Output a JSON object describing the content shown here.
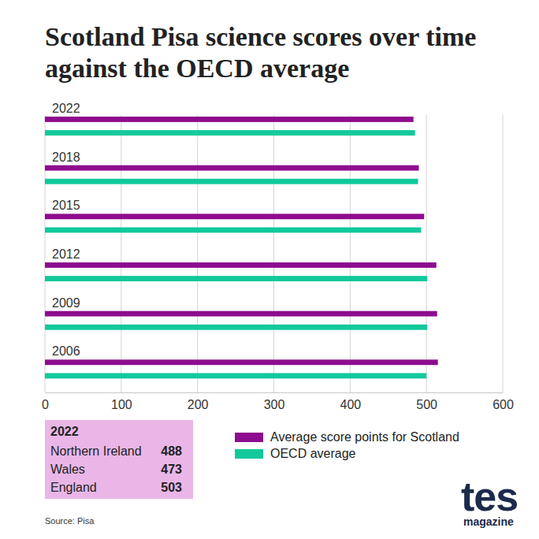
{
  "chart_data": {
    "type": "bar",
    "orientation": "horizontal",
    "title": "Scotland Pisa science scores over time against the OECD average",
    "categories": [
      "2022",
      "2018",
      "2015",
      "2012",
      "2009",
      "2006"
    ],
    "series": [
      {
        "name": "Average score points for Scotland",
        "color": "#8e0c8e",
        "values": [
          483,
          490,
          497,
          513,
          514,
          515
        ]
      },
      {
        "name": "OECD average",
        "color": "#12c99b",
        "values": [
          485,
          489,
          493,
          501,
          501,
          500
        ]
      }
    ],
    "xlim": [
      0,
      600
    ],
    "xticks": [
      0,
      100,
      200,
      300,
      400,
      500,
      600
    ],
    "grid": true,
    "legend": "bottom",
    "annotations": [
      {
        "title": "2022",
        "color": "#e9b6e7",
        "items": [
          {
            "label": "Northern Ireland",
            "value": 488
          },
          {
            "label": "Wales",
            "value": 473
          },
          {
            "label": "England",
            "value": 503
          }
        ]
      }
    ],
    "source": "Source: Pisa",
    "logo": {
      "text": "tes",
      "subtext": "magazine",
      "color": "#1c2a4c"
    }
  }
}
